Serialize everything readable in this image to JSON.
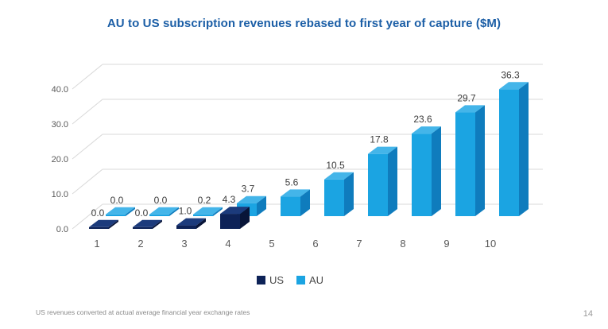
{
  "slide": {
    "title": "AU to US subscription revenues rebased to first year of capture ($M)",
    "title_color": "#1b5ea6",
    "footnote": "US revenues converted at actual average financial year exchange rates",
    "page_number": "14"
  },
  "chart_data": {
    "type": "bar",
    "variant": "3d-clustered-column",
    "title": "AU to US subscription revenues rebased to first year of capture ($M)",
    "categories": [
      "1",
      "2",
      "3",
      "4",
      "5",
      "6",
      "7",
      "8",
      "9",
      "10"
    ],
    "series": [
      {
        "name": "US",
        "values": [
          0.0,
          0.0,
          1.0,
          4.3,
          null,
          null,
          null,
          null,
          null,
          null
        ],
        "colors": {
          "front": "#0d2257",
          "top": "#1c3b7c",
          "side": "#081538"
        }
      },
      {
        "name": "AU",
        "values": [
          0.0,
          0.0,
          0.2,
          3.7,
          5.6,
          10.5,
          17.8,
          23.6,
          29.7,
          36.3
        ],
        "colors": {
          "front": "#1ba4e2",
          "top": "#44b5e9",
          "side": "#0f7cbd"
        }
      }
    ],
    "xlabel": "",
    "ylabel": "",
    "ylim": [
      0,
      40
    ],
    "yticks": [
      "0.0",
      "10.0",
      "20.0",
      "30.0",
      "40.0"
    ],
    "grid": true,
    "legend_position": "bottom",
    "data_labels": true
  }
}
